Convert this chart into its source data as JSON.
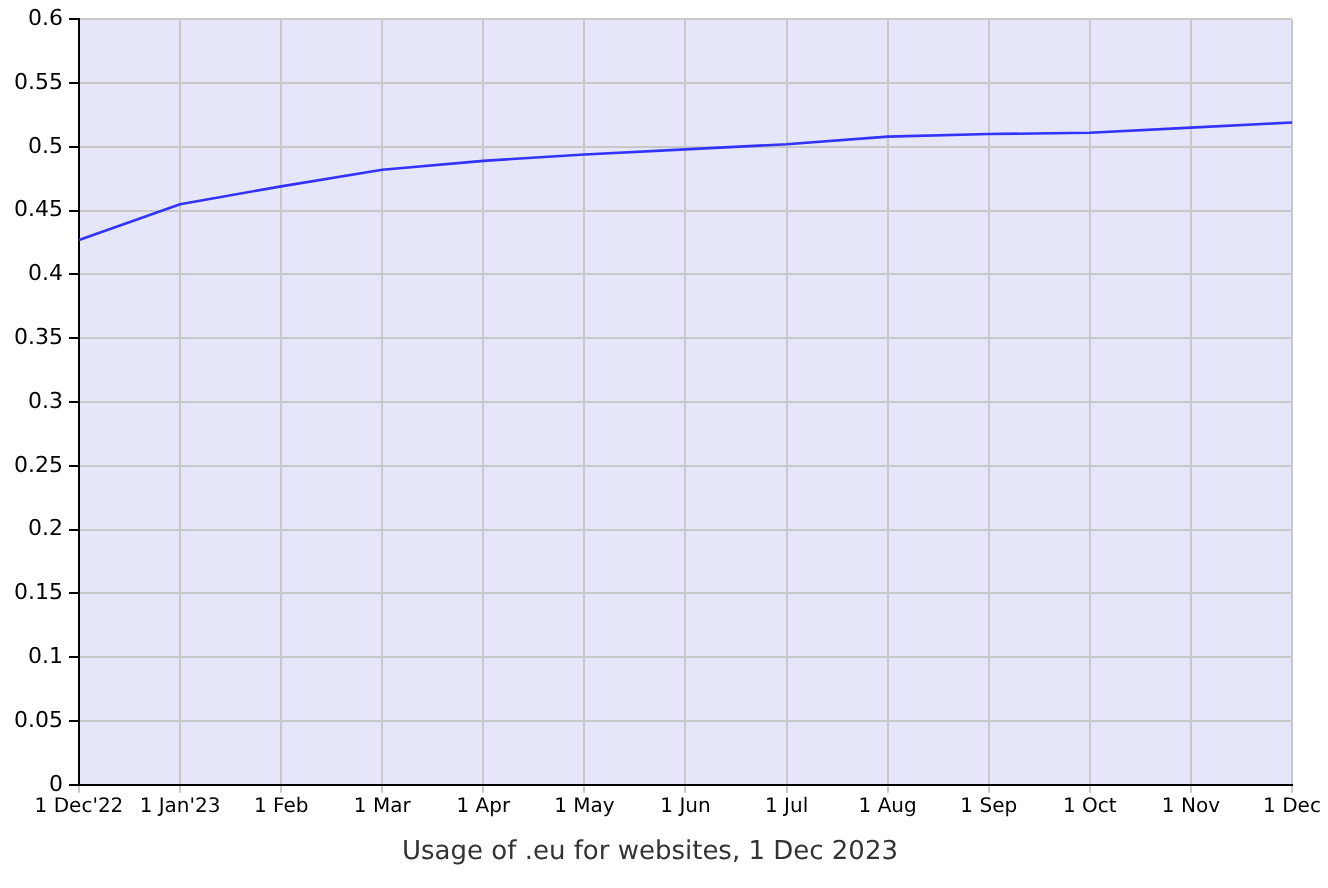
{
  "chart_data": {
    "type": "line",
    "title": "Usage of .eu for websites, 1 Dec 2023",
    "categories": [
      "1 Dec'22",
      "1 Jan'23",
      "1 Feb",
      "1 Mar",
      "1 Apr",
      "1 May",
      "1 Jun",
      "1 Jul",
      "1 Aug",
      "1 Sep",
      "1 Oct",
      "1 Nov",
      "1 Dec"
    ],
    "series": [
      {
        "color": "#3333ff",
        "values": [
          0.427,
          0.455,
          0.469,
          0.482,
          0.489,
          0.494,
          0.498,
          0.502,
          0.508,
          0.51,
          0.511,
          0.515,
          0.519
        ]
      }
    ],
    "ylim": [
      0,
      0.6
    ],
    "yticks": [
      0,
      0.05,
      0.1,
      0.15,
      0.2,
      0.25,
      0.3,
      0.35,
      0.4,
      0.45,
      0.5,
      0.55,
      0.6
    ],
    "grid": true,
    "legend": false,
    "marker": "none",
    "line_style": "solid"
  }
}
